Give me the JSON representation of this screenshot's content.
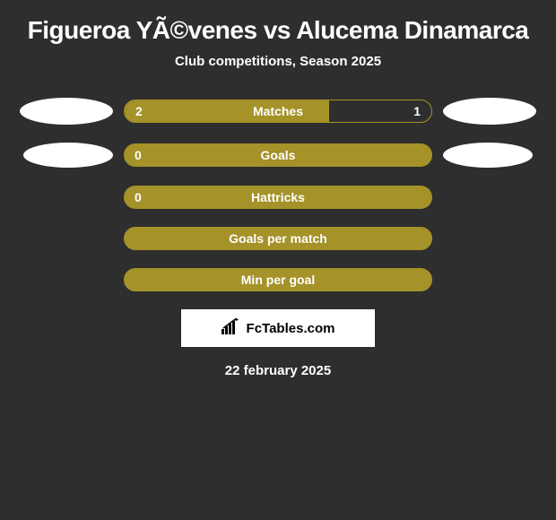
{
  "title": "Figueroa YÃ©venes vs Alucema Dinamarca",
  "subtitle": "Club competitions, Season 2025",
  "stats": [
    {
      "label": "Matches",
      "left_value": "2",
      "right_value": "1",
      "left_pct": 66.7,
      "show_avatars": true,
      "avatar_size": "large"
    },
    {
      "label": "Goals",
      "left_value": "0",
      "right_value": "",
      "left_pct": 100,
      "show_avatars": true,
      "avatar_size": "small"
    },
    {
      "label": "Hattricks",
      "left_value": "0",
      "right_value": "",
      "left_pct": 100,
      "show_avatars": false
    },
    {
      "label": "Goals per match",
      "left_value": "",
      "right_value": "",
      "left_pct": 0,
      "show_avatars": false,
      "empty": true
    },
    {
      "label": "Min per goal",
      "left_value": "",
      "right_value": "",
      "left_pct": 0,
      "show_avatars": false,
      "empty": true
    }
  ],
  "brand": "FcTables.com",
  "date": "22 february 2025",
  "colors": {
    "background": "#2e2e2e",
    "bar_fill": "#a59228",
    "text": "#ffffff",
    "brand_bg": "#ffffff",
    "brand_text": "#000000"
  }
}
